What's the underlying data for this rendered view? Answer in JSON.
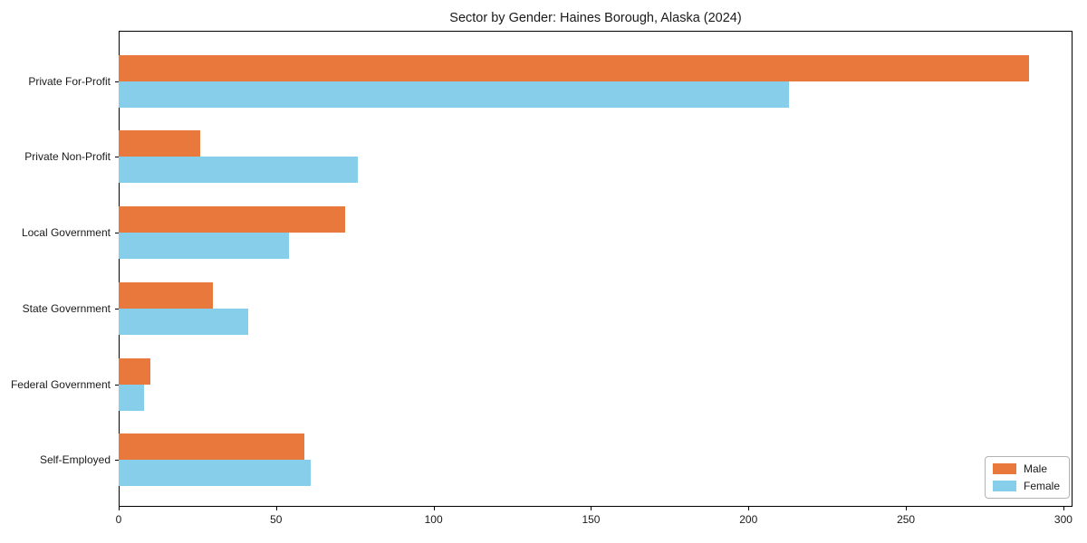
{
  "chart_data": {
    "type": "bar",
    "orientation": "horizontal",
    "title": "Sector by Gender: Haines Borough, Alaska (2024)",
    "categories": [
      "Private For-Profit",
      "Private Non-Profit",
      "Local Government",
      "State Government",
      "Federal Government",
      "Self-Employed"
    ],
    "series": [
      {
        "name": "Male",
        "color": "#e8783c",
        "values": [
          289,
          26,
          72,
          30,
          10,
          59
        ]
      },
      {
        "name": "Female",
        "color": "#87ceeb",
        "values": [
          213,
          76,
          54,
          41,
          8,
          61
        ]
      }
    ],
    "xlabel": "",
    "ylabel": "",
    "xticks": [
      0,
      50,
      100,
      150,
      200,
      250,
      300
    ],
    "xlim": [
      0,
      302.9
    ],
    "grid": false,
    "legend_position": "lower right",
    "background_color": "#ffffff",
    "axis_color": "#000000"
  }
}
